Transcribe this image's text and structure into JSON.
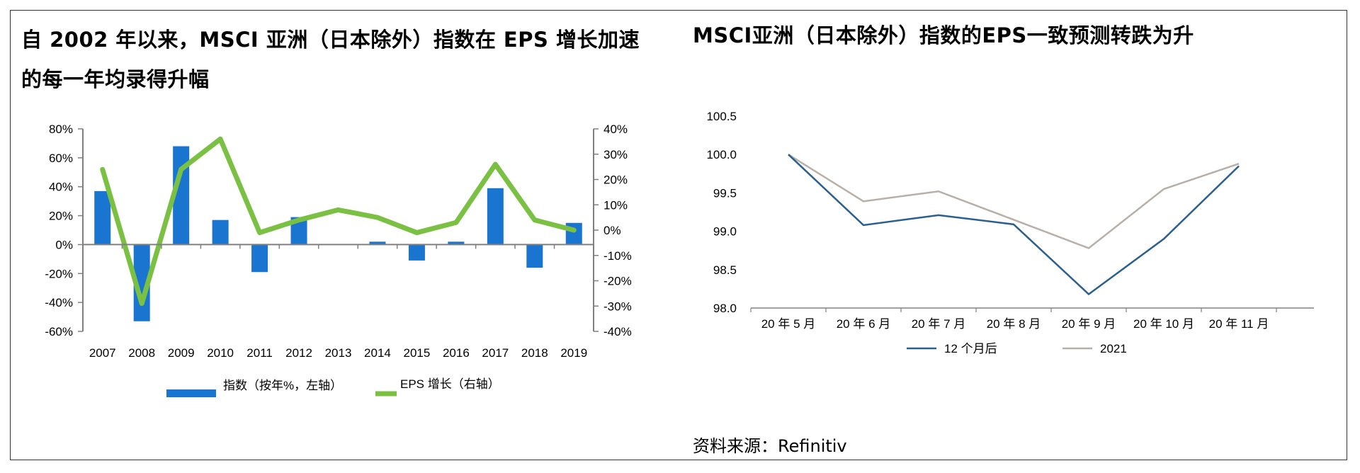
{
  "left_panel": {
    "title": "自 2002 年以来，MSCI 亚洲（日本除外）指数在 EPS 增长加速的每一年均录得升幅"
  },
  "right_panel": {
    "title": "MSCI亚洲（日本除外）指数的EPS一致预测转跌为升"
  },
  "source": "资料来源：Refinitiv",
  "colors": {
    "bar": "#1a75d1",
    "eps_line": "#7ac143",
    "line_12m": "#2b5f8f",
    "line_2021": "#b8b0a8",
    "axis": "#808080"
  },
  "chart_data": [
    {
      "type": "bar",
      "categories": [
        "2007",
        "2008",
        "2009",
        "2010",
        "2011",
        "2012",
        "2013",
        "2014",
        "2015",
        "2016",
        "2017",
        "2018",
        "2019"
      ],
      "series": [
        {
          "name": "指数（按年%，左轴）",
          "kind": "bar",
          "axis": "left",
          "values": [
            37,
            -53,
            68,
            17,
            -19,
            19,
            0,
            2,
            -11,
            2,
            39,
            -16,
            15
          ]
        },
        {
          "name": "EPS 增长（右轴）",
          "kind": "line",
          "axis": "right",
          "values": [
            24,
            -29,
            24,
            36,
            -1,
            4,
            8,
            5,
            -1,
            3,
            26,
            4,
            0
          ]
        }
      ],
      "left_ticks": [
        "80%",
        "60%",
        "40%",
        "20%",
        "0%",
        "-20%",
        "-40%",
        "-60%"
      ],
      "right_ticks": [
        "40%",
        "30%",
        "20%",
        "10%",
        "0%",
        "-10%",
        "-20%",
        "-30%",
        "-40%"
      ],
      "ylim_left": [
        -60,
        80
      ],
      "ylim_right": [
        -40,
        40
      ],
      "legend_position": "bottom"
    },
    {
      "type": "line",
      "categories": [
        "20 年 5 月",
        "20 年 6 月",
        "20 年 7 月",
        "20 年 8 月",
        "20 年 9 月",
        "20 年 10 月",
        "20 年 11 月"
      ],
      "series": [
        {
          "name": "12 个月后",
          "values": [
            100.0,
            99.08,
            99.21,
            99.09,
            98.18,
            98.9,
            99.85
          ]
        },
        {
          "name": "2021",
          "values": [
            100.0,
            99.39,
            99.52,
            99.15,
            98.78,
            99.55,
            99.88
          ]
        }
      ],
      "y_ticks": [
        "100.5",
        "100.0",
        "99.5",
        "99.0",
        "98.5",
        "98.0"
      ],
      "ylim": [
        98.0,
        100.5
      ],
      "legend_position": "bottom"
    }
  ]
}
